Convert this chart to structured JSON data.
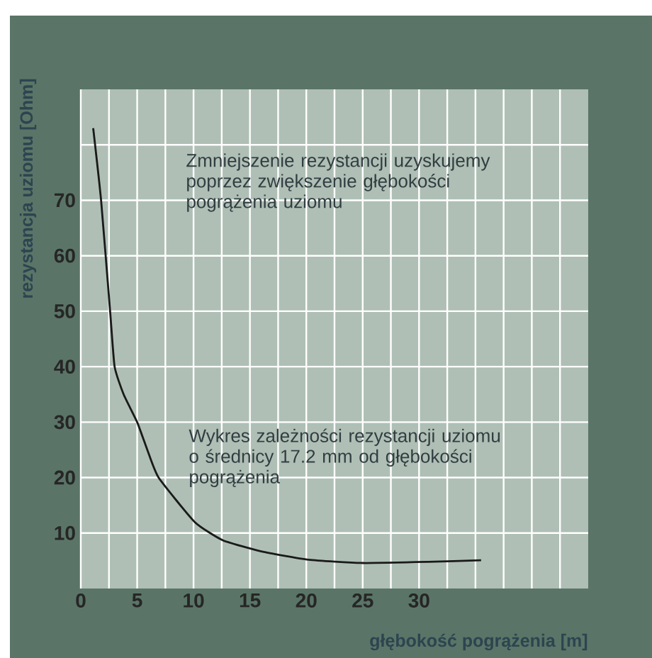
{
  "chart_data": {
    "type": "line",
    "xlabel": "głębokość pogrążenia [m]",
    "ylabel": "rezystancja uziomu [Ohm]",
    "annotations": [
      "Zmniejszenie rezystancji uzyskujemy poprzez zwiększenie głębokości pogrążenia uziomu",
      "Wykres zależności rezystancji uziomu o średnicy 17.2 mm od głębokości pogrążenia"
    ],
    "series": [
      {
        "color": "#1a1a1a",
        "x": [
          1.1,
          1.8,
          2.6,
          3.0,
          3.8,
          5.0,
          5.9,
          6.9,
          10.1,
          12.6,
          16,
          20.2,
          25,
          30.8,
          35.5
        ],
        "values": [
          83,
          70,
          50,
          40,
          35,
          30,
          25,
          20,
          12,
          8.7,
          6.7,
          5.2,
          4.6,
          4.8,
          5.1
        ]
      }
    ],
    "xlim": [
      0,
      45
    ],
    "xticks": [
      0,
      {
        "value": 2.5,
        "label": null
      },
      5,
      {
        "value": 7.5,
        "label": null
      },
      10,
      {
        "value": 12.5,
        "label": null
      },
      15,
      {
        "value": 17.5,
        "label": null
      },
      20,
      {
        "value": 22.5,
        "label": null
      },
      25,
      {
        "value": 27.5,
        "label": null
      },
      30,
      {
        "value": 32.5,
        "label": null
      },
      {
        "value": 35,
        "label": null
      },
      {
        "value": 37.5,
        "label": null
      },
      {
        "value": 40,
        "label": null
      },
      {
        "value": 42.5,
        "label": null
      }
    ],
    "ylim": [
      0,
      90
    ],
    "yticks": [
      10,
      20,
      30,
      40,
      50,
      60,
      70,
      {
        "value": 80,
        "label": null
      }
    ],
    "grid": true,
    "legend": false,
    "marker": "none",
    "line_style": "solid"
  }
}
